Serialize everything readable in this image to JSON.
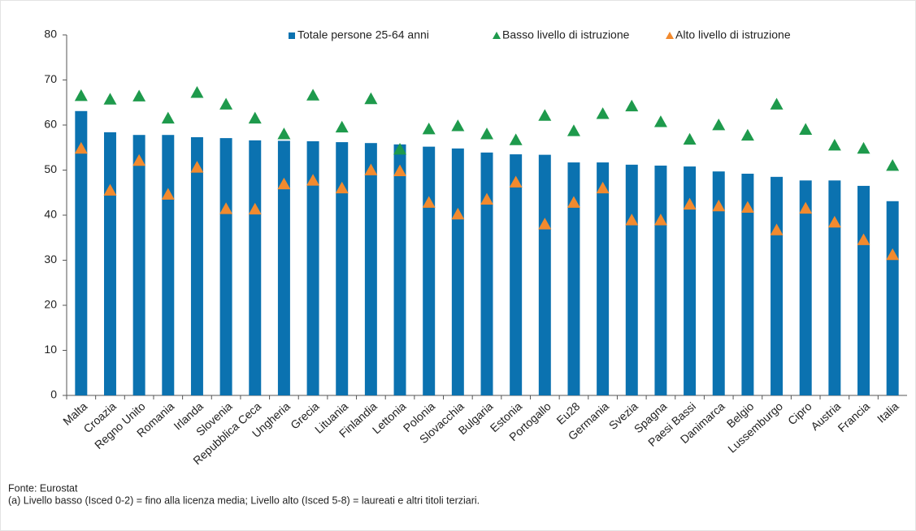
{
  "chart_data": {
    "type": "bar",
    "categories": [
      "Malta",
      "Croazia",
      "Regno Unito",
      "Romania",
      "Irlanda",
      "Slovenia",
      "Repubblica Ceca",
      "Ungheria",
      "Grecia",
      "Lituania",
      "Finlandia",
      "Lettonia",
      "Polonia",
      "Slovacchia",
      "Bulgaria",
      "Estonia",
      "Portogallo",
      "Eu28",
      "Germania",
      "Svezia",
      "Spagna",
      "Paesi Bassi",
      "Danimarca",
      "Belgio",
      "Lussemburgo",
      "Cipro",
      "Austria",
      "Francia",
      "Italia"
    ],
    "series": [
      {
        "name": "Totale persone 25-64 anni",
        "color": "#0b72b0",
        "marker": "bar",
        "values": [
          63.1,
          58.4,
          57.8,
          57.8,
          57.3,
          57.1,
          56.6,
          56.5,
          56.4,
          56.2,
          56.0,
          55.7,
          55.2,
          54.8,
          53.9,
          53.5,
          53.4,
          51.7,
          51.7,
          51.2,
          51.0,
          50.8,
          49.7,
          49.2,
          48.5,
          47.7,
          47.7,
          46.5,
          43.1
        ]
      },
      {
        "name": "Basso livello di istruzione",
        "color": "#1e9a4c",
        "marker": "triangle",
        "values": [
          66.5,
          65.7,
          66.4,
          61.5,
          67.2,
          64.6,
          61.5,
          58.0,
          66.6,
          59.5,
          65.8,
          54.6,
          59.1,
          59.8,
          58.0,
          56.7,
          62.1,
          58.7,
          62.5,
          64.2,
          60.7,
          56.8,
          60.0,
          57.7,
          64.6,
          59.0,
          55.5,
          54.8,
          51.0
        ]
      },
      {
        "name": "Alto livello di istruzione",
        "color": "#f28a2e",
        "marker": "triangle",
        "values": [
          54.8,
          45.5,
          52.1,
          44.6,
          50.6,
          41.4,
          41.3,
          46.9,
          47.7,
          46.0,
          50.0,
          49.8,
          42.8,
          40.2,
          43.5,
          47.3,
          38.0,
          42.8,
          46.0,
          38.9,
          38.9,
          42.4,
          42.0,
          41.7,
          36.7,
          41.5,
          38.4,
          34.5,
          31.2
        ]
      }
    ],
    "ylim": [
      0,
      80
    ],
    "yticks": [
      0,
      10,
      20,
      30,
      40,
      50,
      60,
      70,
      80
    ],
    "grid": false,
    "source": "Fonte: Eurostat",
    "note": "(a) Livello basso (Isced 0-2) = fino alla licenza media; Livello alto (Isced 5-8) = laureati e altri titoli terziari."
  }
}
